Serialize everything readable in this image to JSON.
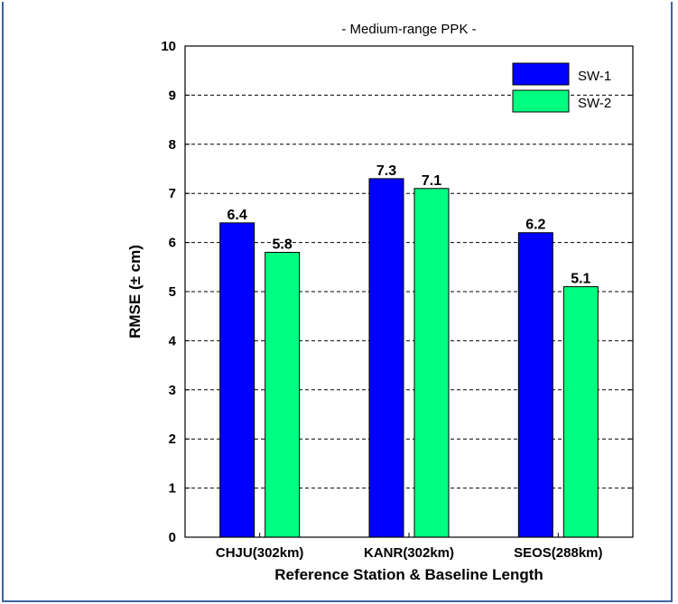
{
  "chart_data": {
    "type": "bar",
    "title": "- Medium-range PPK -",
    "xlabel": "Reference Station & Baseline Length",
    "ylabel": "RMSE (± cm)",
    "categories": [
      "CHJU(302km)",
      "KANR(302km)",
      "SEOS(288km)"
    ],
    "ylim": [
      0,
      10
    ],
    "yticks": [
      "0",
      "1",
      "2",
      "3",
      "4",
      "5",
      "6",
      "7",
      "8",
      "9",
      "10"
    ],
    "grid": "horizontal dashed",
    "legend_position": "top-right",
    "series": [
      {
        "name": "SW-1",
        "values": [
          6.4,
          7.3,
          6.2
        ],
        "labels": [
          "6.4",
          "7.3",
          "6.2"
        ],
        "color": "#0000ff"
      },
      {
        "name": "SW-2",
        "values": [
          5.8,
          7.1,
          5.1
        ],
        "labels": [
          "5.8",
          "7.1",
          "5.1"
        ],
        "color": "#00ff80"
      }
    ]
  }
}
